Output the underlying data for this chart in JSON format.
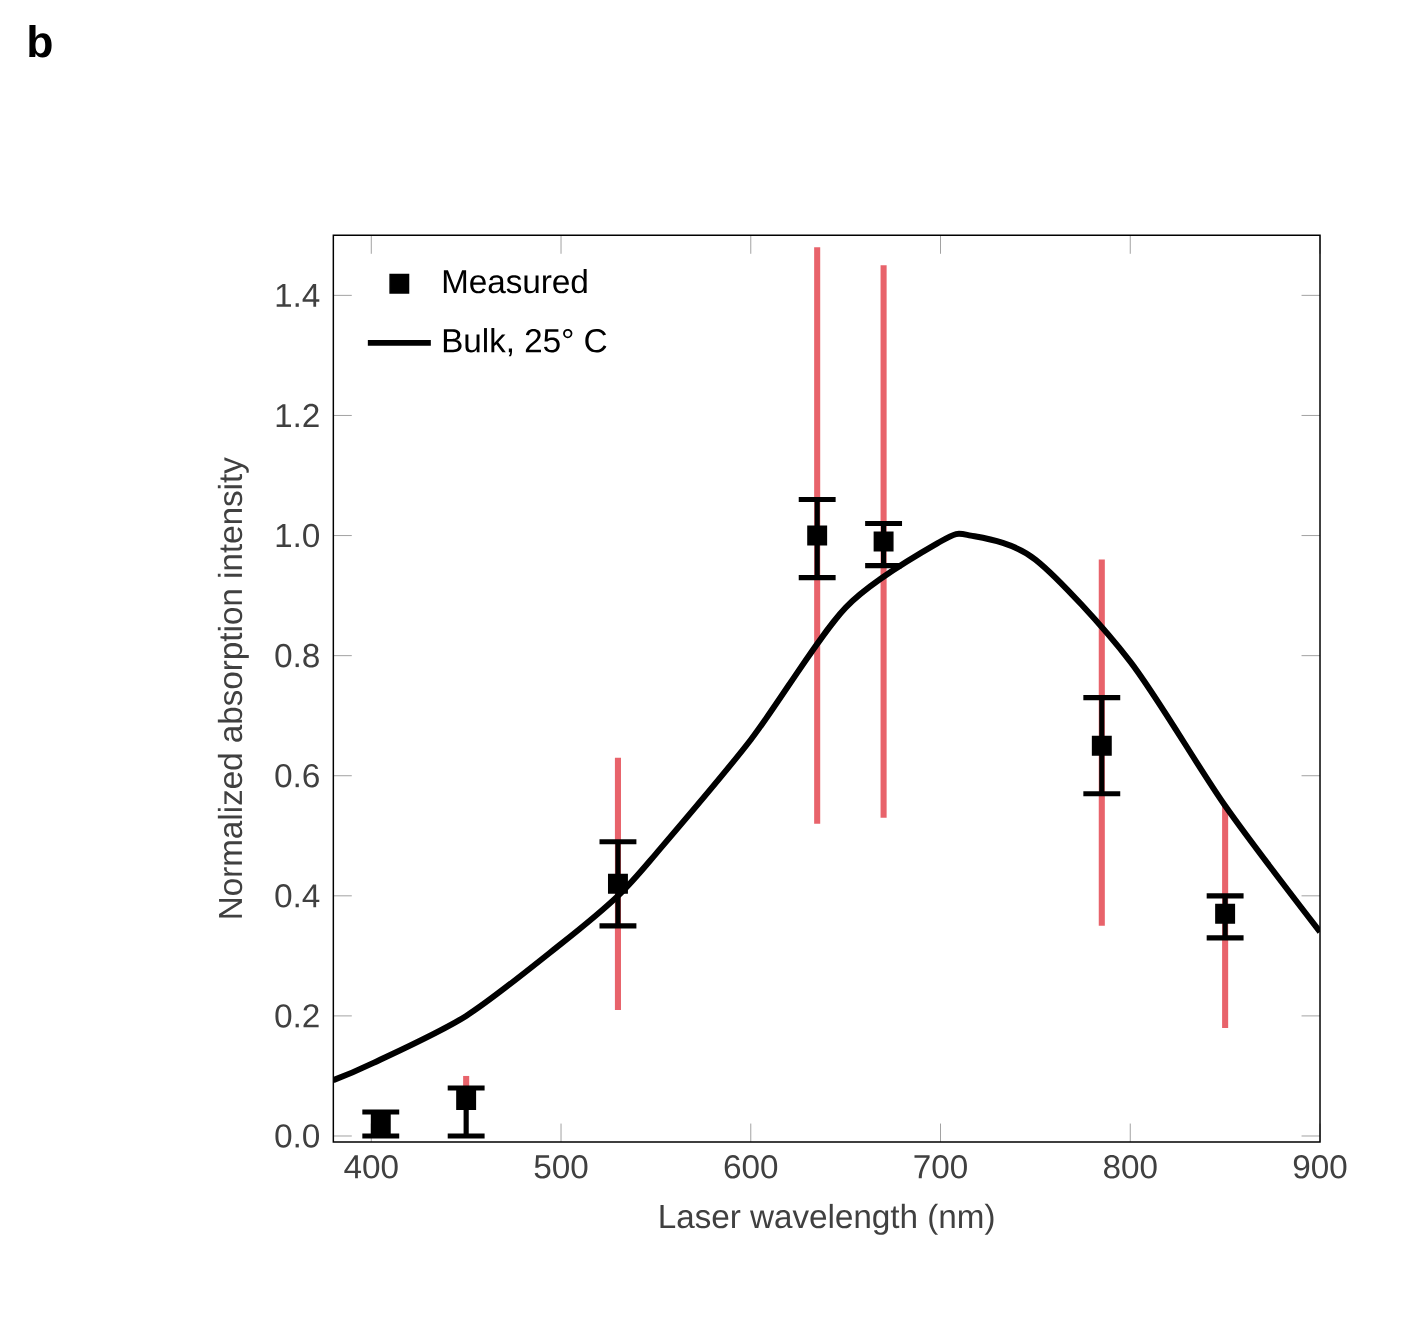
{
  "chart_data": {
    "type": "scatter",
    "xlabel": "Laser wavelength (nm)",
    "ylabel": "Normalized absorption intensity",
    "annotations": [
      "b"
    ],
    "xlim": [
      380,
      900
    ],
    "ylim": [
      -0.01,
      1.5
    ],
    "xticks": [
      400,
      500,
      600,
      700,
      800,
      900
    ],
    "yticks": [
      {
        "value": 0,
        "label": "0.0"
      },
      {
        "value": 0.2,
        "label": "0.2"
      },
      {
        "value": 0.4,
        "label": "0.4"
      },
      {
        "value": 0.6,
        "label": "0.6"
      },
      {
        "value": 0.8,
        "label": "0.8"
      },
      {
        "value": 1,
        "label": "1.0"
      },
      {
        "value": 1.2,
        "label": "1.2"
      },
      {
        "value": 1.4,
        "label": "1.4"
      }
    ],
    "legend": "top left",
    "grid": false,
    "series": [
      {
        "name": "Measured",
        "marker": "square",
        "color": "#000000",
        "x": [
          405,
          450,
          530,
          635,
          670,
          785,
          850
        ],
        "values": [
          0.02,
          0.06,
          0.42,
          1.0,
          0.99,
          0.65,
          0.37
        ],
        "errors": [
          [
            0.0,
            0.04
          ],
          [
            0.0,
            0.08
          ],
          [
            0.35,
            0.49
          ],
          [
            0.93,
            1.06
          ],
          [
            0.95,
            1.02
          ],
          [
            0.57,
            0.73
          ],
          [
            0.33,
            0.4
          ]
        ]
      },
      {
        "type": "bar",
        "color": "#e8636b",
        "x": [
          450,
          530,
          635,
          670,
          785,
          850
        ],
        "base": [
          0.06,
          0.21,
          0.52,
          0.53,
          0.35,
          0.18
        ],
        "values": [
          0.04,
          0.42,
          0.96,
          0.92,
          0.61,
          0.37
        ]
      },
      {
        "name": "Bulk, 25° C",
        "type": "line",
        "marker": "none",
        "line_style": "solid",
        "color": "#000000",
        "x": [
          380,
          400,
          450,
          500,
          530,
          550,
          600,
          650,
          700,
          716,
          750,
          800,
          850,
          900
        ],
        "values": [
          0.093,
          0.12,
          0.2,
          0.32,
          0.4,
          0.47,
          0.66,
          0.88,
          0.99,
          1.0,
          0.96,
          0.79,
          0.55,
          0.34
        ]
      }
    ]
  }
}
